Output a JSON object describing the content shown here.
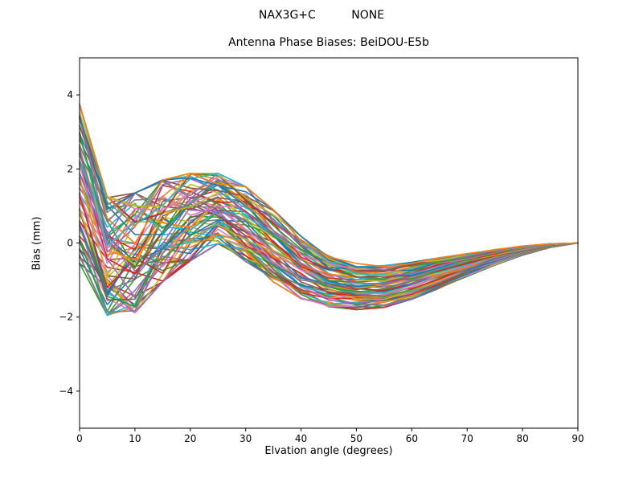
{
  "figure": {
    "suptitle": "NAX3G+C          NONE",
    "title": "Antenna Phase Biases: BeiDOU-E5b",
    "xlabel": "Elvation angle (degrees)",
    "ylabel": "Bias (mm)",
    "background_color": "#ffffff",
    "text_color": "#000000",
    "spine_color": "#000000"
  },
  "chart_data": {
    "type": "line",
    "suptitle": "NAX3G+C          NONE",
    "title": "Antenna Phase Biases: BeiDOU-E5b",
    "xlabel": "Elvation angle (degrees)",
    "ylabel": "Bias (mm)",
    "xlim": [
      0,
      90
    ],
    "ylim": [
      -5,
      5
    ],
    "xticks": [
      0,
      10,
      20,
      30,
      40,
      50,
      60,
      70,
      80,
      90
    ],
    "yticks": [
      -4,
      -2,
      0,
      2,
      4
    ],
    "grid": false,
    "legend": "none",
    "x": [
      0,
      5,
      10,
      15,
      20,
      25,
      30,
      35,
      40,
      45,
      50,
      55,
      60,
      65,
      70,
      75,
      80,
      85,
      90
    ],
    "ensemble": {
      "description": "Unlabeled ensemble of antenna phase-bias curves (one per antenna/station). Bundle fans out at 0 deg, dips near 5-10 deg, peaks near 20-25 deg, has a smooth valley near 45-55 deg, and all curves converge to 0 mm at 90 deg. Values below are the envelope (top/bottom, in mm) read from the plot at each 5-degree step.",
      "n_lines": 72,
      "envelope_top": [
        3.75,
        1.25,
        1.35,
        1.7,
        1.88,
        1.88,
        1.52,
        0.9,
        0.18,
        -0.35,
        -0.55,
        -0.6,
        -0.52,
        -0.4,
        -0.28,
        -0.17,
        -0.08,
        -0.02,
        0.0
      ],
      "envelope_bottom": [
        -0.55,
        -1.95,
        -1.88,
        -1.05,
        -0.48,
        -0.02,
        -0.5,
        -1.05,
        -1.5,
        -1.72,
        -1.8,
        -1.74,
        -1.52,
        -1.22,
        -0.9,
        -0.6,
        -0.33,
        -0.12,
        0.0
      ],
      "braid_amplitude": [
        0.06,
        0.24,
        0.28,
        0.24,
        0.2,
        0.16,
        0.12,
        0.1,
        0.09,
        0.08,
        0.07,
        0.06,
        0.06,
        0.05,
        0.05,
        0.04,
        0.03,
        0.02,
        0.0
      ],
      "line_width": 1.6,
      "color_cycle": [
        "#1f77b4",
        "#ff7f0e",
        "#2ca02c",
        "#d62728",
        "#9467bd",
        "#8c564b",
        "#e377c2",
        "#7f7f7f",
        "#bcbd22",
        "#17becf"
      ]
    }
  }
}
